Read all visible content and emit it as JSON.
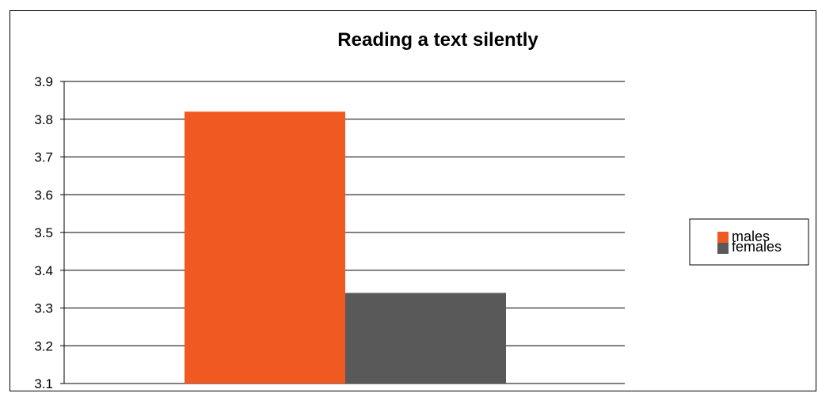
{
  "chart_data": {
    "type": "bar",
    "title": "Reading a text silently",
    "xlabel": "",
    "ylabel": "",
    "categories": [
      ""
    ],
    "series": [
      {
        "name": "males",
        "values": [
          3.82
        ],
        "color": "#F05A22"
      },
      {
        "name": "females",
        "values": [
          3.34
        ],
        "color": "#595959"
      }
    ],
    "ylim": [
      3.1,
      3.9
    ],
    "yticks": [
      "3.9",
      "3.8",
      "3.7",
      "3.6",
      "3.5",
      "3.4",
      "3.3",
      "3.2",
      "3.1"
    ],
    "grid": true,
    "legend_position": "right"
  }
}
